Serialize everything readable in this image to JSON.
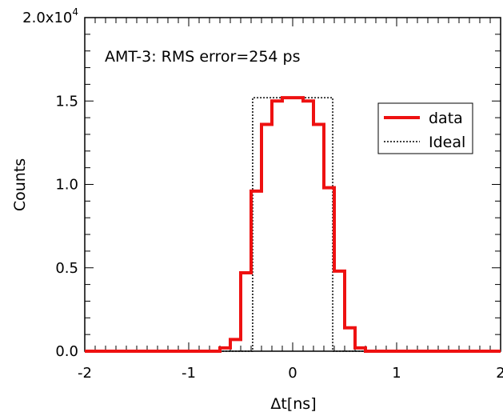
{
  "chart_data": {
    "type": "histogram",
    "annotation": "AMT-3: RMS error=254 ps",
    "xlabel": "Δt[ns]",
    "ylabel": "Counts",
    "xlim": [
      -2,
      2
    ],
    "ylim": [
      0,
      20000
    ],
    "x_ticks": [
      {
        "value": -2,
        "label": "-2"
      },
      {
        "value": -1,
        "label": "-1"
      },
      {
        "value": 0,
        "label": "0"
      },
      {
        "value": 1,
        "label": "1"
      },
      {
        "value": 2,
        "label": "2"
      }
    ],
    "y_ticks": [
      {
        "value": 0,
        "label": "0.0"
      },
      {
        "value": 5000,
        "label": "0.5"
      },
      {
        "value": 10000,
        "label": "1.0"
      },
      {
        "value": 15000,
        "label": "1.5"
      },
      {
        "value": 20000,
        "label": "2.0x10",
        "sup": "4"
      }
    ],
    "legend": {
      "position": "upper-right",
      "items": [
        {
          "name": "data",
          "color": "#ee1111",
          "style": "solid"
        },
        {
          "name": "Ideal",
          "color": "#000000",
          "style": "dotted"
        }
      ]
    },
    "series": [
      {
        "name": "data",
        "color": "#ee1111",
        "bin_edges": [
          -0.8,
          -0.7,
          -0.6,
          -0.5,
          -0.4,
          -0.3,
          -0.2,
          -0.1,
          0.0,
          0.1,
          0.2,
          0.3,
          0.4,
          0.5,
          0.6,
          0.7
        ],
        "values": [
          0,
          200,
          700,
          4700,
          9600,
          13600,
          15000,
          15200,
          15200,
          15000,
          13600,
          9800,
          4800,
          1400,
          200
        ]
      },
      {
        "name": "Ideal",
        "color": "#000000",
        "bin_edges": [
          -0.385,
          0.385
        ],
        "values": [
          15200
        ]
      }
    ]
  }
}
